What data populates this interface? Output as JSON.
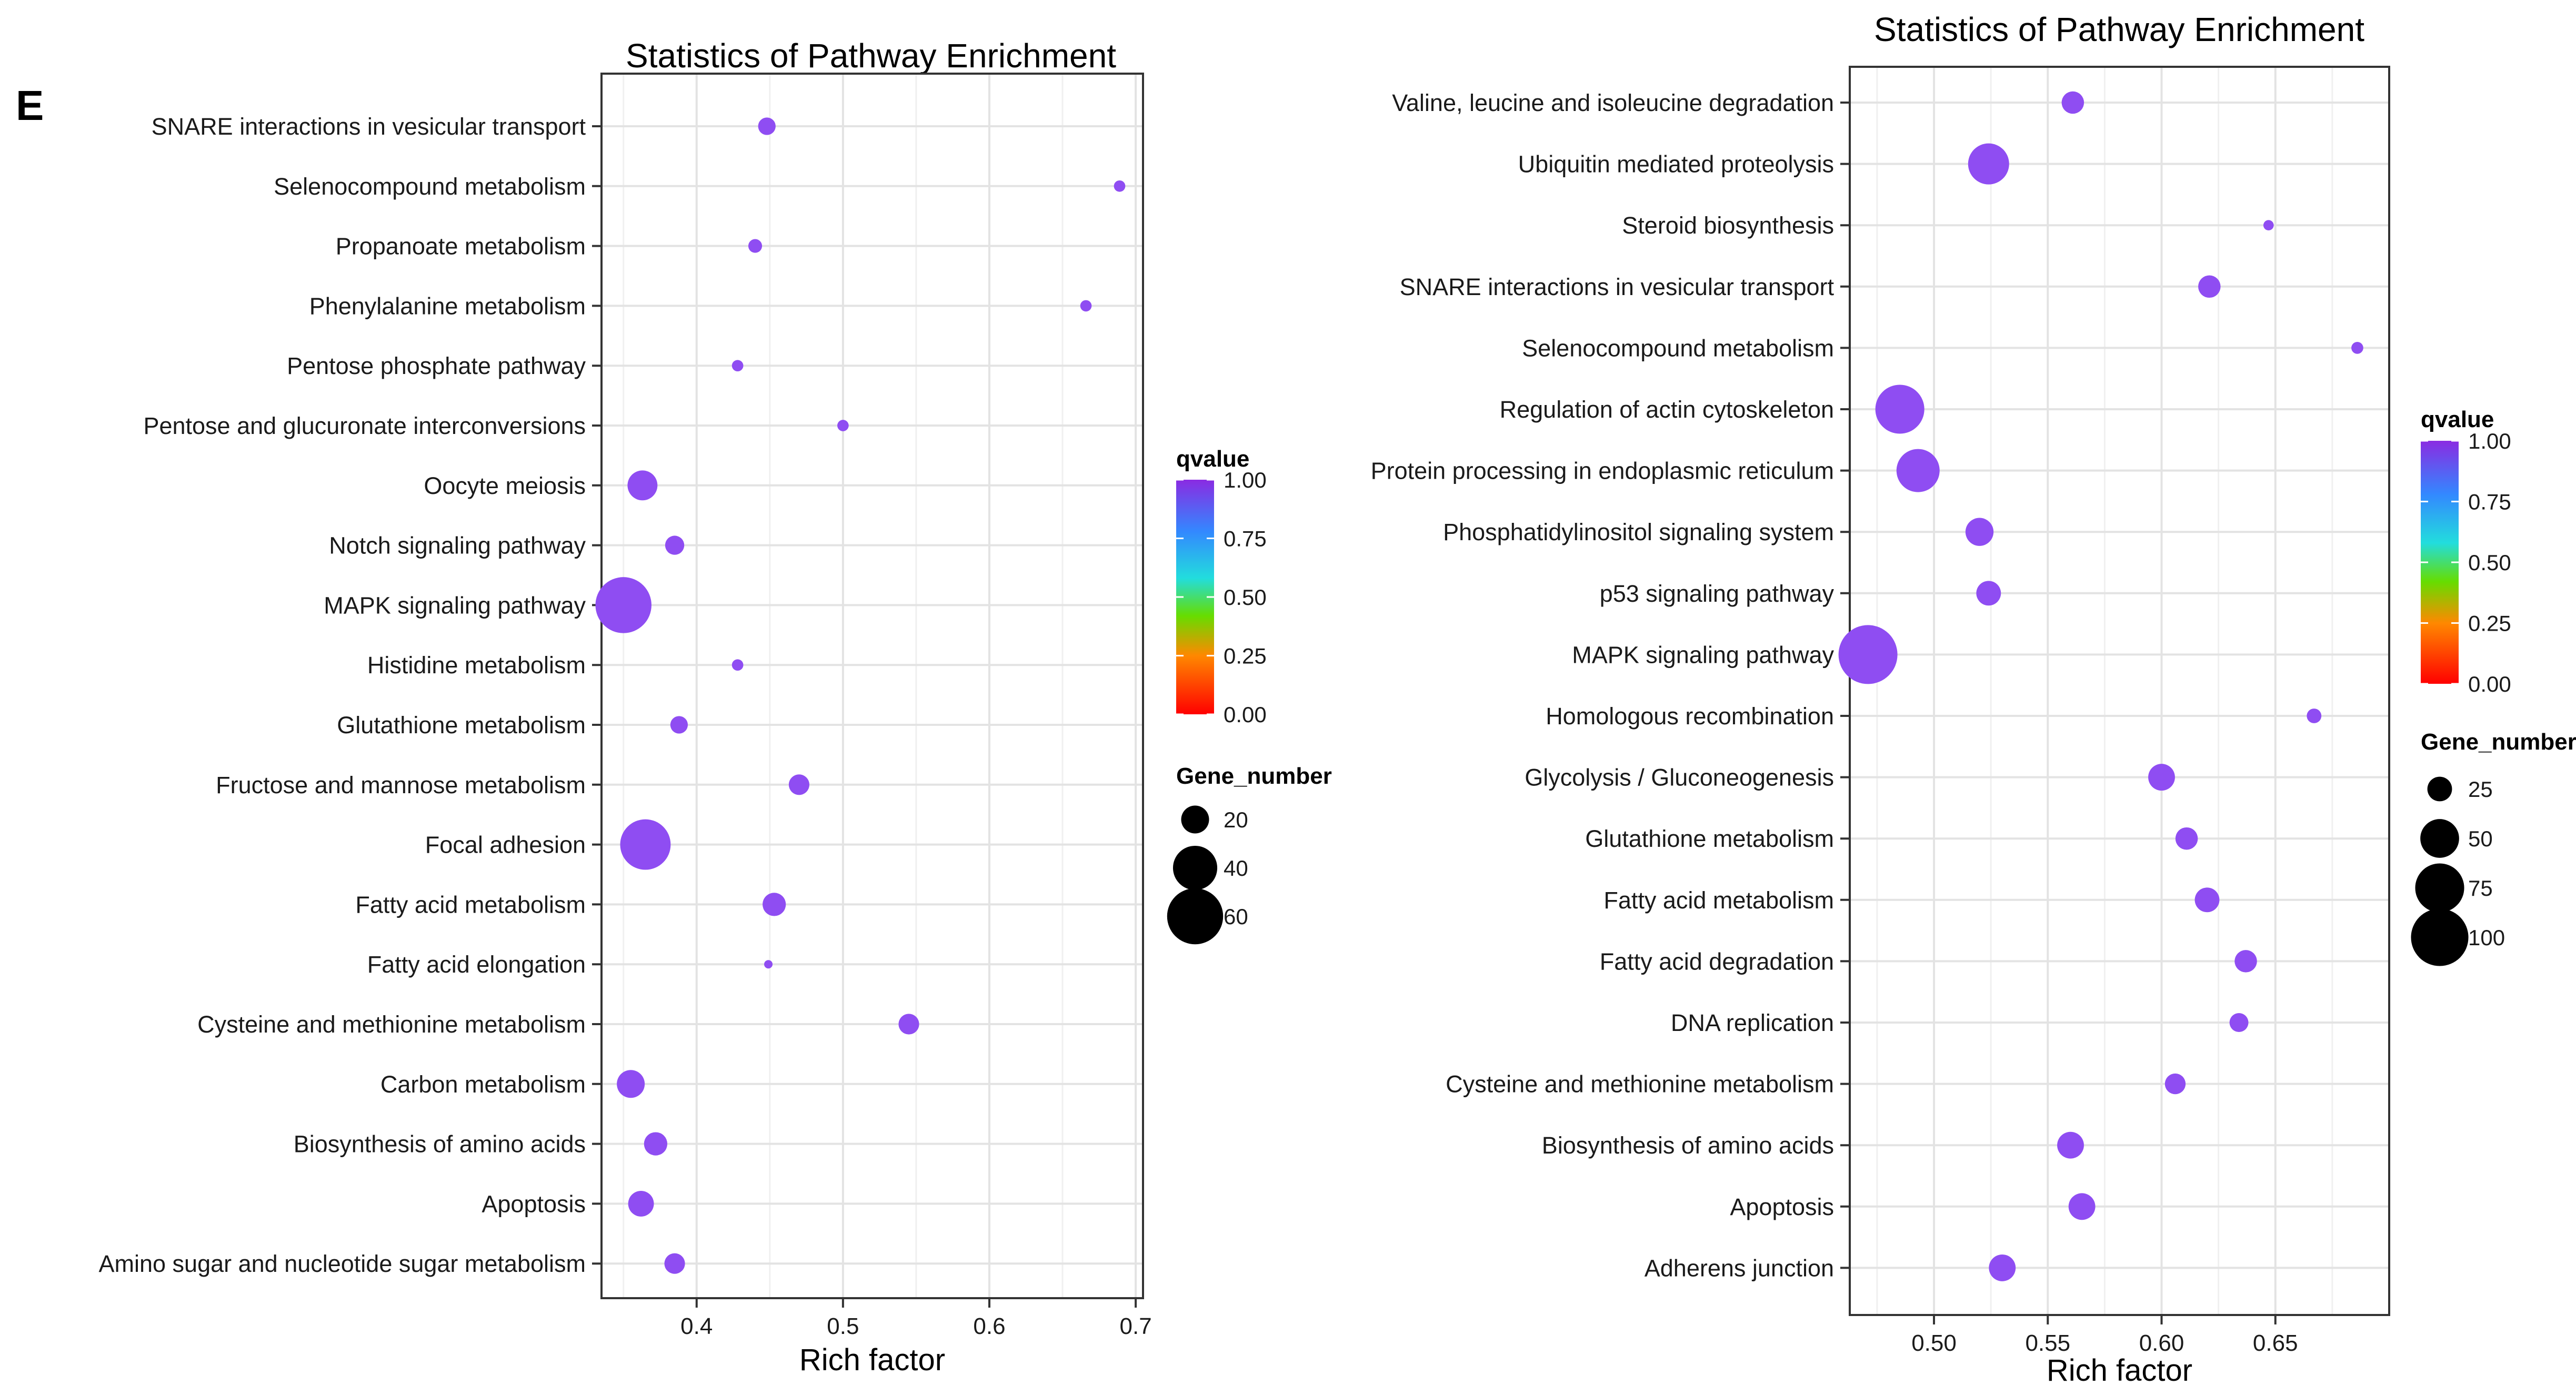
{
  "panel_label": "E",
  "chart_data": [
    {
      "type": "scatter",
      "title": "Statistics of Pathway Enrichment",
      "xlabel": "Rich factor",
      "ylabel": "",
      "xlim": [
        0.335,
        0.705
      ],
      "xticks": [
        0.4,
        0.5,
        0.6,
        0.7
      ],
      "xtick_labels": [
        "0.4",
        "0.5",
        "0.6",
        "0.7"
      ],
      "grid": true,
      "legend_position": "right",
      "color_legend": {
        "title": "qvalue",
        "ticks": [
          "1.00",
          "0.75",
          "0.50",
          "0.25",
          "0.00"
        ],
        "values": [
          1.0,
          0.75,
          0.5,
          0.25,
          0.0
        ]
      },
      "size_legend": {
        "title": "Gene_number",
        "labels": [
          "20",
          "40",
          "60"
        ],
        "values": [
          20,
          40,
          60
        ]
      },
      "gene_range": [
        8,
        70
      ],
      "pathways": [
        "SNARE interactions in vesicular transport",
        "Selenocompound metabolism",
        "Propanoate metabolism",
        "Phenylalanine metabolism",
        "Pentose phosphate pathway",
        "Pentose and glucuronate interconversions",
        "Oocyte meiosis",
        "Notch signaling pathway",
        "MAPK signaling pathway",
        "Histidine metabolism",
        "Glutathione metabolism",
        "Fructose and mannose metabolism",
        "Focal adhesion",
        "Fatty acid metabolism",
        "Fatty acid elongation",
        "Cysteine and methionine metabolism",
        "Carbon metabolism",
        "Biosynthesis of amino acids",
        "Apoptosis",
        "Amino sugar and nucleotide sugar metabolism"
      ],
      "rich_factor": [
        0.448,
        0.689,
        0.44,
        0.666,
        0.428,
        0.5,
        0.363,
        0.385,
        0.35,
        0.428,
        0.388,
        0.47,
        0.365,
        0.453,
        0.449,
        0.545,
        0.355,
        0.372,
        0.362,
        0.385
      ],
      "gene_number": [
        12,
        9,
        10,
        9,
        9,
        9,
        22,
        13,
        60,
        9,
        12,
        14,
        50,
        16,
        8,
        14,
        20,
        16,
        18,
        14
      ],
      "qvalue": [
        1.0,
        1.0,
        1.0,
        1.0,
        1.0,
        1.0,
        1.0,
        1.0,
        1.0,
        1.0,
        1.0,
        1.0,
        1.0,
        1.0,
        1.0,
        1.0,
        1.0,
        1.0,
        1.0,
        1.0
      ]
    },
    {
      "type": "scatter",
      "title": "Statistics of Pathway Enrichment",
      "xlabel": "Rich factor",
      "ylabel": "",
      "xlim": [
        0.463,
        0.7
      ],
      "xticks": [
        0.5,
        0.55,
        0.6,
        0.65
      ],
      "xtick_labels": [
        "0.50",
        "0.55",
        "0.60",
        "0.65"
      ],
      "grid": true,
      "legend_position": "right",
      "color_legend": {
        "title": "qvalue",
        "ticks": [
          "1.00",
          "0.75",
          "0.50",
          "0.25",
          "0.00"
        ],
        "values": [
          1.0,
          0.75,
          0.5,
          0.25,
          0.0
        ]
      },
      "size_legend": {
        "title": "Gene_number",
        "labels": [
          "25",
          "50",
          "75",
          "100"
        ],
        "values": [
          25,
          50,
          75,
          100
        ]
      },
      "gene_range": [
        10,
        105
      ],
      "pathways": [
        "Valine, leucine and isoleucine degradation",
        "Ubiquitin mediated proteolysis",
        "Steroid biosynthesis",
        "SNARE interactions in vesicular transport",
        "Selenocompound metabolism",
        "Regulation of actin cytoskeleton",
        "Protein processing in endoplasmic reticulum",
        "Phosphatidylinositol signaling system",
        "p53 signaling pathway",
        "MAPK signaling pathway",
        "Homologous recombination",
        "Glycolysis / Gluconeogenesis",
        "Glutathione metabolism",
        "Fatty acid metabolism",
        "Fatty acid degradation",
        "DNA replication",
        "Cysteine and methionine metabolism",
        "Biosynthesis of amino acids",
        "Apoptosis",
        "Adherens junction"
      ],
      "rich_factor": [
        0.561,
        0.524,
        0.647,
        0.621,
        0.686,
        0.485,
        0.493,
        0.52,
        0.524,
        0.471,
        0.667,
        0.6,
        0.611,
        0.62,
        0.637,
        0.634,
        0.606,
        0.56,
        0.565,
        0.53
      ],
      "gene_number": [
        22,
        55,
        11,
        22,
        12,
        75,
        60,
        30,
        25,
        105,
        14,
        28,
        22,
        25,
        22,
        18,
        20,
        28,
        28,
        28
      ],
      "qvalue": [
        1.0,
        1.0,
        1.0,
        1.0,
        1.0,
        1.0,
        1.0,
        1.0,
        1.0,
        1.0,
        1.0,
        1.0,
        1.0,
        1.0,
        1.0,
        1.0,
        1.0,
        1.0,
        1.0,
        1.0
      ]
    }
  ]
}
